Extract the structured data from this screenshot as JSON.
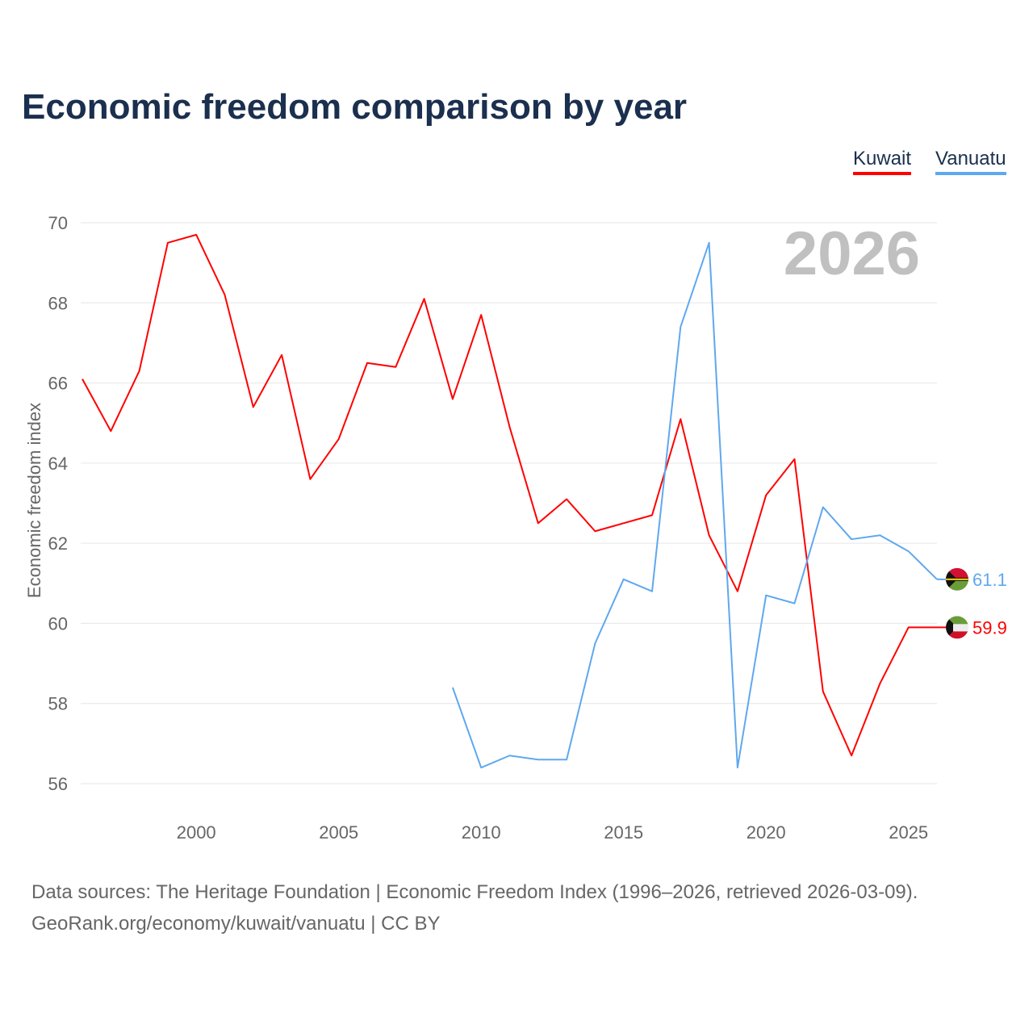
{
  "chart_data": {
    "type": "line",
    "title": "Economic freedom comparison by year",
    "ylabel": "Economic freedom index",
    "xlabel": "",
    "ylim": [
      56,
      70
    ],
    "xlim": [
      1996,
      2026
    ],
    "yticks": [
      56,
      58,
      60,
      62,
      64,
      66,
      68,
      70
    ],
    "xticks": [
      2000,
      2005,
      2010,
      2015,
      2020,
      2025
    ],
    "year_watermark": "2026",
    "legend_position": "top-right",
    "series": [
      {
        "name": "Kuwait",
        "color": "#ff0000",
        "end_label": "59.9",
        "x": [
          1996,
          1997,
          1998,
          1999,
          2000,
          2001,
          2002,
          2003,
          2004,
          2005,
          2006,
          2007,
          2008,
          2009,
          2010,
          2011,
          2012,
          2013,
          2014,
          2015,
          2016,
          2017,
          2018,
          2019,
          2020,
          2021,
          2022,
          2023,
          2024,
          2025,
          2026
        ],
        "values": [
          66.1,
          64.8,
          66.3,
          69.5,
          69.7,
          68.2,
          65.4,
          66.7,
          63.6,
          64.6,
          66.5,
          66.4,
          68.1,
          65.6,
          67.7,
          64.9,
          62.5,
          63.1,
          62.3,
          62.5,
          62.7,
          65.1,
          62.2,
          60.8,
          63.2,
          64.1,
          58.3,
          56.7,
          58.5,
          59.9,
          59.9
        ]
      },
      {
        "name": "Vanuatu",
        "color": "#5fa8ef",
        "end_label": "61.1",
        "x": [
          2009,
          2010,
          2011,
          2012,
          2013,
          2014,
          2015,
          2016,
          2017,
          2018,
          2019,
          2020,
          2021,
          2022,
          2023,
          2024,
          2025,
          2026
        ],
        "values": [
          58.4,
          56.4,
          56.7,
          56.6,
          56.6,
          59.5,
          61.1,
          60.8,
          67.4,
          69.5,
          56.4,
          60.7,
          60.5,
          62.9,
          62.1,
          62.2,
          61.8,
          61.1
        ]
      }
    ]
  },
  "footer": {
    "line1": "Data sources: The Heritage Foundation | Economic Freedom Index (1996–2026, retrieved 2026-03-09).",
    "line2": "GeoRank.org/economy/kuwait/vanuatu | CC BY"
  }
}
